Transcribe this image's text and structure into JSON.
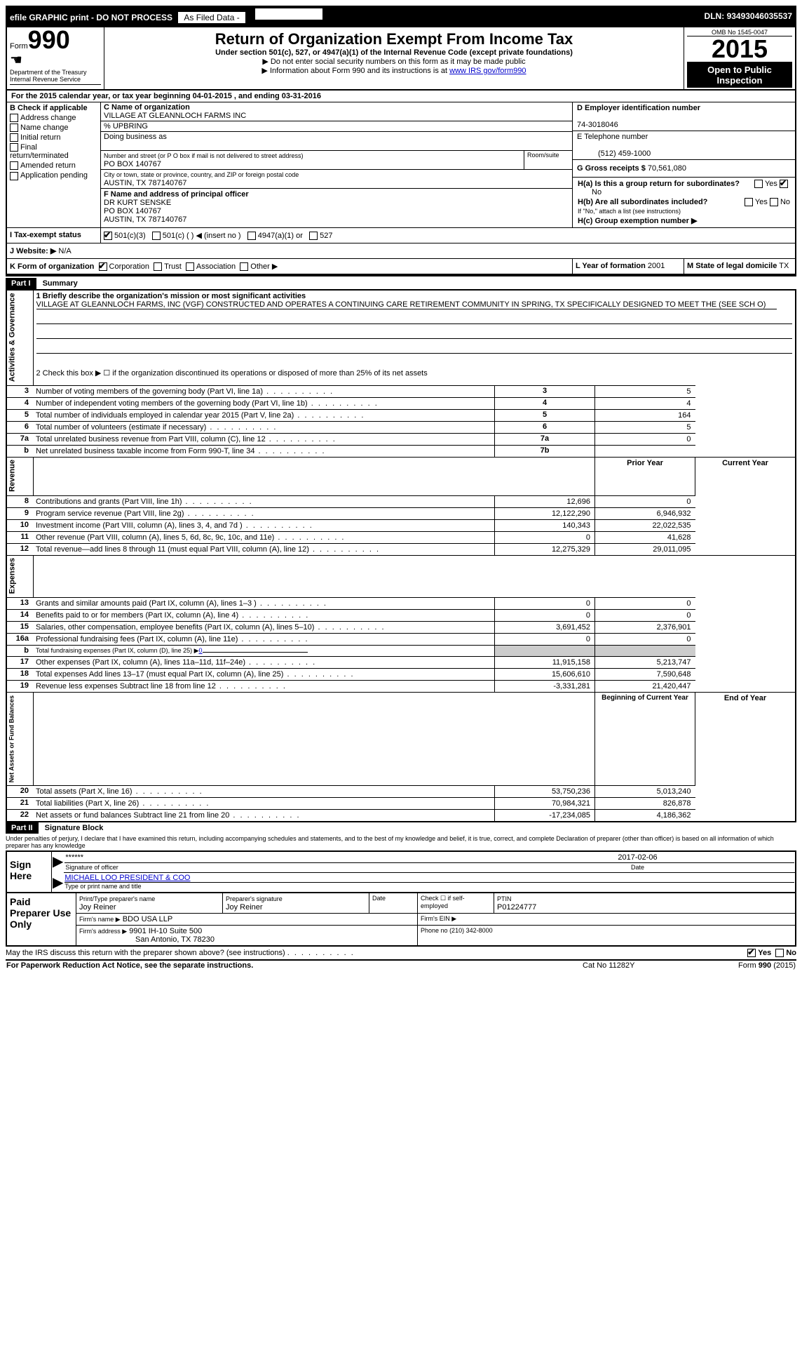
{
  "topbar": {
    "efile_text": "efile GRAPHIC print - DO NOT PROCESS",
    "as_filed": "As Filed Data -",
    "dln_label": "DLN:",
    "dln": "93493046035537"
  },
  "header": {
    "form_label": "Form",
    "form_number": "990",
    "dept": "Department of the Treasury",
    "irs": "Internal Revenue Service",
    "title": "Return of Organization Exempt From Income Tax",
    "subtitle": "Under section 501(c), 527, or 4947(a)(1) of the Internal Revenue Code (except private foundations)",
    "note1": "▶ Do not enter social security numbers on this form as it may be made public",
    "note2_prefix": "▶ Information about Form 990 and its instructions is at ",
    "note2_link": "www IRS gov/form990",
    "omb": "OMB No 1545-0047",
    "year": "2015",
    "open": "Open to Public Inspection"
  },
  "sectionA": {
    "line_a": "For the 2015 calendar year, or tax year beginning 04-01-2015   , and ending 03-31-2016",
    "b_label": "B Check if applicable",
    "b_items": [
      "Address change",
      "Name change",
      "Initial return",
      "Final return/terminated",
      "Amended return",
      "Application pending"
    ],
    "c_label": "C Name of organization",
    "org_name": "VILLAGE AT GLEANNLOCH FARMS INC",
    "pct_label": "% UPBRING",
    "dba_label": "Doing business as",
    "street_label": "Number and street (or P O  box if mail is not delivered to street address)",
    "room_label": "Room/suite",
    "street": "PO BOX 140767",
    "city_label": "City or town, state or province, country, and ZIP or foreign postal code",
    "city": "AUSTIN, TX  787140767",
    "d_label": "D Employer identification number",
    "ein": "74-3018046",
    "e_label": "E Telephone number",
    "phone": "(512) 459-1000",
    "g_label": "G Gross receipts $",
    "gross": "70,561,080",
    "f_label": "F  Name and address of principal officer",
    "officer_name": "DR KURT SENSKE",
    "officer_street": "PO BOX 140767",
    "officer_city": "AUSTIN, TX  787140767",
    "ha_label": "H(a)  Is this a group return for subordinates?",
    "ha_no": "No",
    "hb_label": "H(b)  Are all subordinates included?",
    "hb_note": "If \"No,\" attach a list  (see instructions)",
    "hc_label": "H(c)  Group exemption number ▶",
    "i_label": "I  Tax-exempt status",
    "i_501c3": "501(c)(3)",
    "i_501c": "501(c) (   ) ◀ (insert no )",
    "i_4947": "4947(a)(1) or",
    "i_527": "527",
    "j_label": "J  Website: ▶",
    "website": "N/A",
    "k_label": "K Form of organization",
    "k_corp": "Corporation",
    "k_trust": "Trust",
    "k_assoc": "Association",
    "k_other": "Other ▶",
    "l_label": "L Year of formation",
    "l_val": "2001",
    "m_label": "M State of legal domicile",
    "m_val": "TX",
    "yes": "Yes",
    "no": "No"
  },
  "part1": {
    "header": "Part I",
    "title": "Summary",
    "side_ag": "Activities & Governance",
    "side_rev": "Revenue",
    "side_exp": "Expenses",
    "side_net": "Net Assets or Fund Balances",
    "line1_label": "1 Briefly describe the organization's mission or most significant activities",
    "line1_text": "VILLAGE AT GLEANNLOCH FARMS, INC (VGF) CONSTRUCTED AND OPERATES A CONTINUING CARE RETIREMENT COMMUNITY IN SPRING, TX SPECIFICALLY DESIGNED TO MEET THE (SEE SCH O)",
    "line2": "2  Check this box ▶ ☐ if the organization discontinued its operations or disposed of more than 25% of its net assets",
    "rows_ag": [
      {
        "n": "3",
        "label": "Number of voting members of the governing body (Part VI, line 1a)",
        "ref": "3",
        "val": "5"
      },
      {
        "n": "4",
        "label": "Number of independent voting members of the governing body (Part VI, line 1b)",
        "ref": "4",
        "val": "4"
      },
      {
        "n": "5",
        "label": "Total number of individuals employed in calendar year 2015 (Part V, line 2a)",
        "ref": "5",
        "val": "164"
      },
      {
        "n": "6",
        "label": "Total number of volunteers (estimate if necessary)",
        "ref": "6",
        "val": "5"
      },
      {
        "n": "7a",
        "label": "Total unrelated business revenue from Part VIII, column (C), line 12",
        "ref": "7a",
        "val": "0"
      },
      {
        "n": "b",
        "label": "Net unrelated business taxable income from Form 990-T, line 34",
        "ref": "7b",
        "val": ""
      }
    ],
    "col_prior": "Prior Year",
    "col_current": "Current Year",
    "col_beg": "Beginning of Current Year",
    "col_end": "End of Year",
    "rows_rev": [
      {
        "n": "8",
        "label": "Contributions and grants (Part VIII, line 1h)",
        "prior": "12,696",
        "cur": "0"
      },
      {
        "n": "9",
        "label": "Program service revenue (Part VIII, line 2g)",
        "prior": "12,122,290",
        "cur": "6,946,932"
      },
      {
        "n": "10",
        "label": "Investment income (Part VIII, column (A), lines 3, 4, and 7d )",
        "prior": "140,343",
        "cur": "22,022,535"
      },
      {
        "n": "11",
        "label": "Other revenue (Part VIII, column (A), lines 5, 6d, 8c, 9c, 10c, and 11e)",
        "prior": "0",
        "cur": "41,628"
      },
      {
        "n": "12",
        "label": "Total revenue—add lines 8 through 11 (must equal Part VIII, column (A), line 12)",
        "prior": "12,275,329",
        "cur": "29,011,095"
      }
    ],
    "rows_exp": [
      {
        "n": "13",
        "label": "Grants and similar amounts paid (Part IX, column (A), lines 1–3 )",
        "prior": "0",
        "cur": "0"
      },
      {
        "n": "14",
        "label": "Benefits paid to or for members (Part IX, column (A), line 4)",
        "prior": "0",
        "cur": "0"
      },
      {
        "n": "15",
        "label": "Salaries, other compensation, employee benefits (Part IX, column (A), lines 5–10)",
        "prior": "3,691,452",
        "cur": "2,376,901"
      },
      {
        "n": "16a",
        "label": "Professional fundraising fees (Part IX, column (A), line 11e)",
        "prior": "0",
        "cur": "0"
      },
      {
        "n": "b",
        "label": "Total fundraising expenses (Part IX, column (D), line 25) ▶",
        "prior": "",
        "cur": "",
        "special": "fundraising",
        "fval": "0"
      },
      {
        "n": "17",
        "label": "Other expenses (Part IX, column (A), lines 11a–11d, 11f–24e)",
        "prior": "11,915,158",
        "cur": "5,213,747"
      },
      {
        "n": "18",
        "label": "Total expenses  Add lines 13–17 (must equal Part IX, column (A), line 25)",
        "prior": "15,606,610",
        "cur": "7,590,648"
      },
      {
        "n": "19",
        "label": "Revenue less expenses  Subtract line 18 from line 12",
        "prior": "-3,331,281",
        "cur": "21,420,447"
      }
    ],
    "rows_net": [
      {
        "n": "20",
        "label": "Total assets (Part X, line 16)",
        "prior": "53,750,236",
        "cur": "5,013,240"
      },
      {
        "n": "21",
        "label": "Total liabilities (Part X, line 26)",
        "prior": "70,984,321",
        "cur": "826,878"
      },
      {
        "n": "22",
        "label": "Net assets or fund balances  Subtract line 21 from line 20",
        "prior": "-17,234,085",
        "cur": "4,186,362"
      }
    ]
  },
  "part2": {
    "header": "Part II",
    "title": "Signature Block",
    "perjury": "Under penalties of perjury, I declare that I have examined this return, including accompanying schedules and statements, and to the best of my knowledge and belief, it is true, correct, and complete  Declaration of preparer (other than officer) is based on all information of which preparer has any knowledge",
    "sign_here": "Sign Here",
    "sig_stars": "******",
    "sig_officer_label": "Signature of officer",
    "sig_date": "2017-02-06",
    "date_label": "Date",
    "officer_printed": "MICHAEL LOO PRESIDENT & COO",
    "officer_printed_label": "Type or print name and title",
    "paid": "Paid Preparer Use Only",
    "prep_name_label": "Print/Type preparer's name",
    "prep_name": "Joy Reiner",
    "prep_sig_label": "Preparer's signature",
    "prep_sig": "Joy Reiner",
    "check_label": "Check ☐ if self-employed",
    "ptin_label": "PTIN",
    "ptin": "P01224777",
    "firm_name_label": "Firm's name    ▶",
    "firm_name": "BDO USA LLP",
    "firm_ein_label": "Firm's EIN ▶",
    "firm_addr_label": "Firm's address ▶",
    "firm_addr1": "9901 IH-10 Suite 500",
    "firm_addr2": "San Antonio, TX  78230",
    "firm_phone_label": "Phone no",
    "firm_phone": "(210) 342-8000",
    "discuss": "May the IRS discuss this return with the preparer shown above? (see instructions)",
    "paperwork": "For Paperwork Reduction Act Notice, see the separate instructions.",
    "cat": "Cat No  11282Y",
    "form_footer": "Form 990 (2015)"
  }
}
